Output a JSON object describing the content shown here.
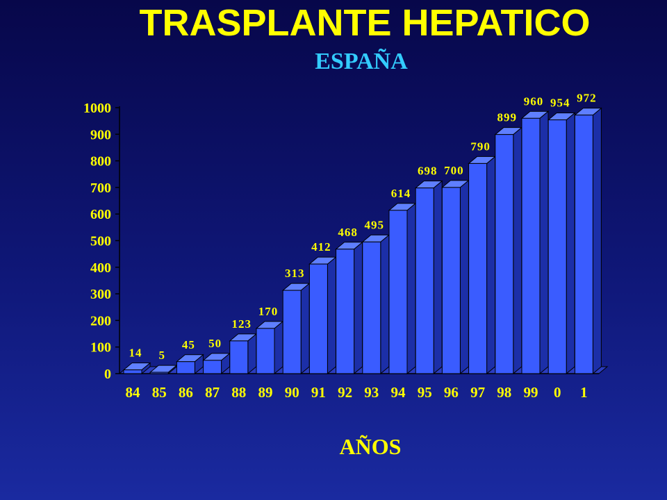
{
  "header": {
    "title": "TRASPLANTE HEPATICO",
    "subtitle": "ESPAÑA"
  },
  "chart_data": {
    "type": "bar",
    "title": "TRASPLANTE HEPATICO",
    "subtitle": "ESPAÑA",
    "xlabel": "AÑOS",
    "ylabel": "",
    "categories": [
      "84",
      "85",
      "86",
      "87",
      "88",
      "89",
      "90",
      "91",
      "92",
      "93",
      "94",
      "95",
      "96",
      "97",
      "98",
      "99",
      "0",
      "1"
    ],
    "values": [
      14,
      5,
      45,
      50,
      123,
      170,
      313,
      412,
      468,
      495,
      614,
      698,
      700,
      790,
      899,
      960,
      954,
      972
    ],
    "ylim": [
      0,
      1000
    ],
    "yticks": [
      0,
      100,
      200,
      300,
      400,
      500,
      600,
      700,
      800,
      900,
      1000
    ],
    "grid": false,
    "legend": "none",
    "style": "3d",
    "colors": {
      "bar_front": "#3a5cff",
      "bar_side": "#1c2fa8",
      "bar_top": "#5f7fff",
      "text": "#ffff00",
      "subtitle": "#33ccff"
    }
  }
}
